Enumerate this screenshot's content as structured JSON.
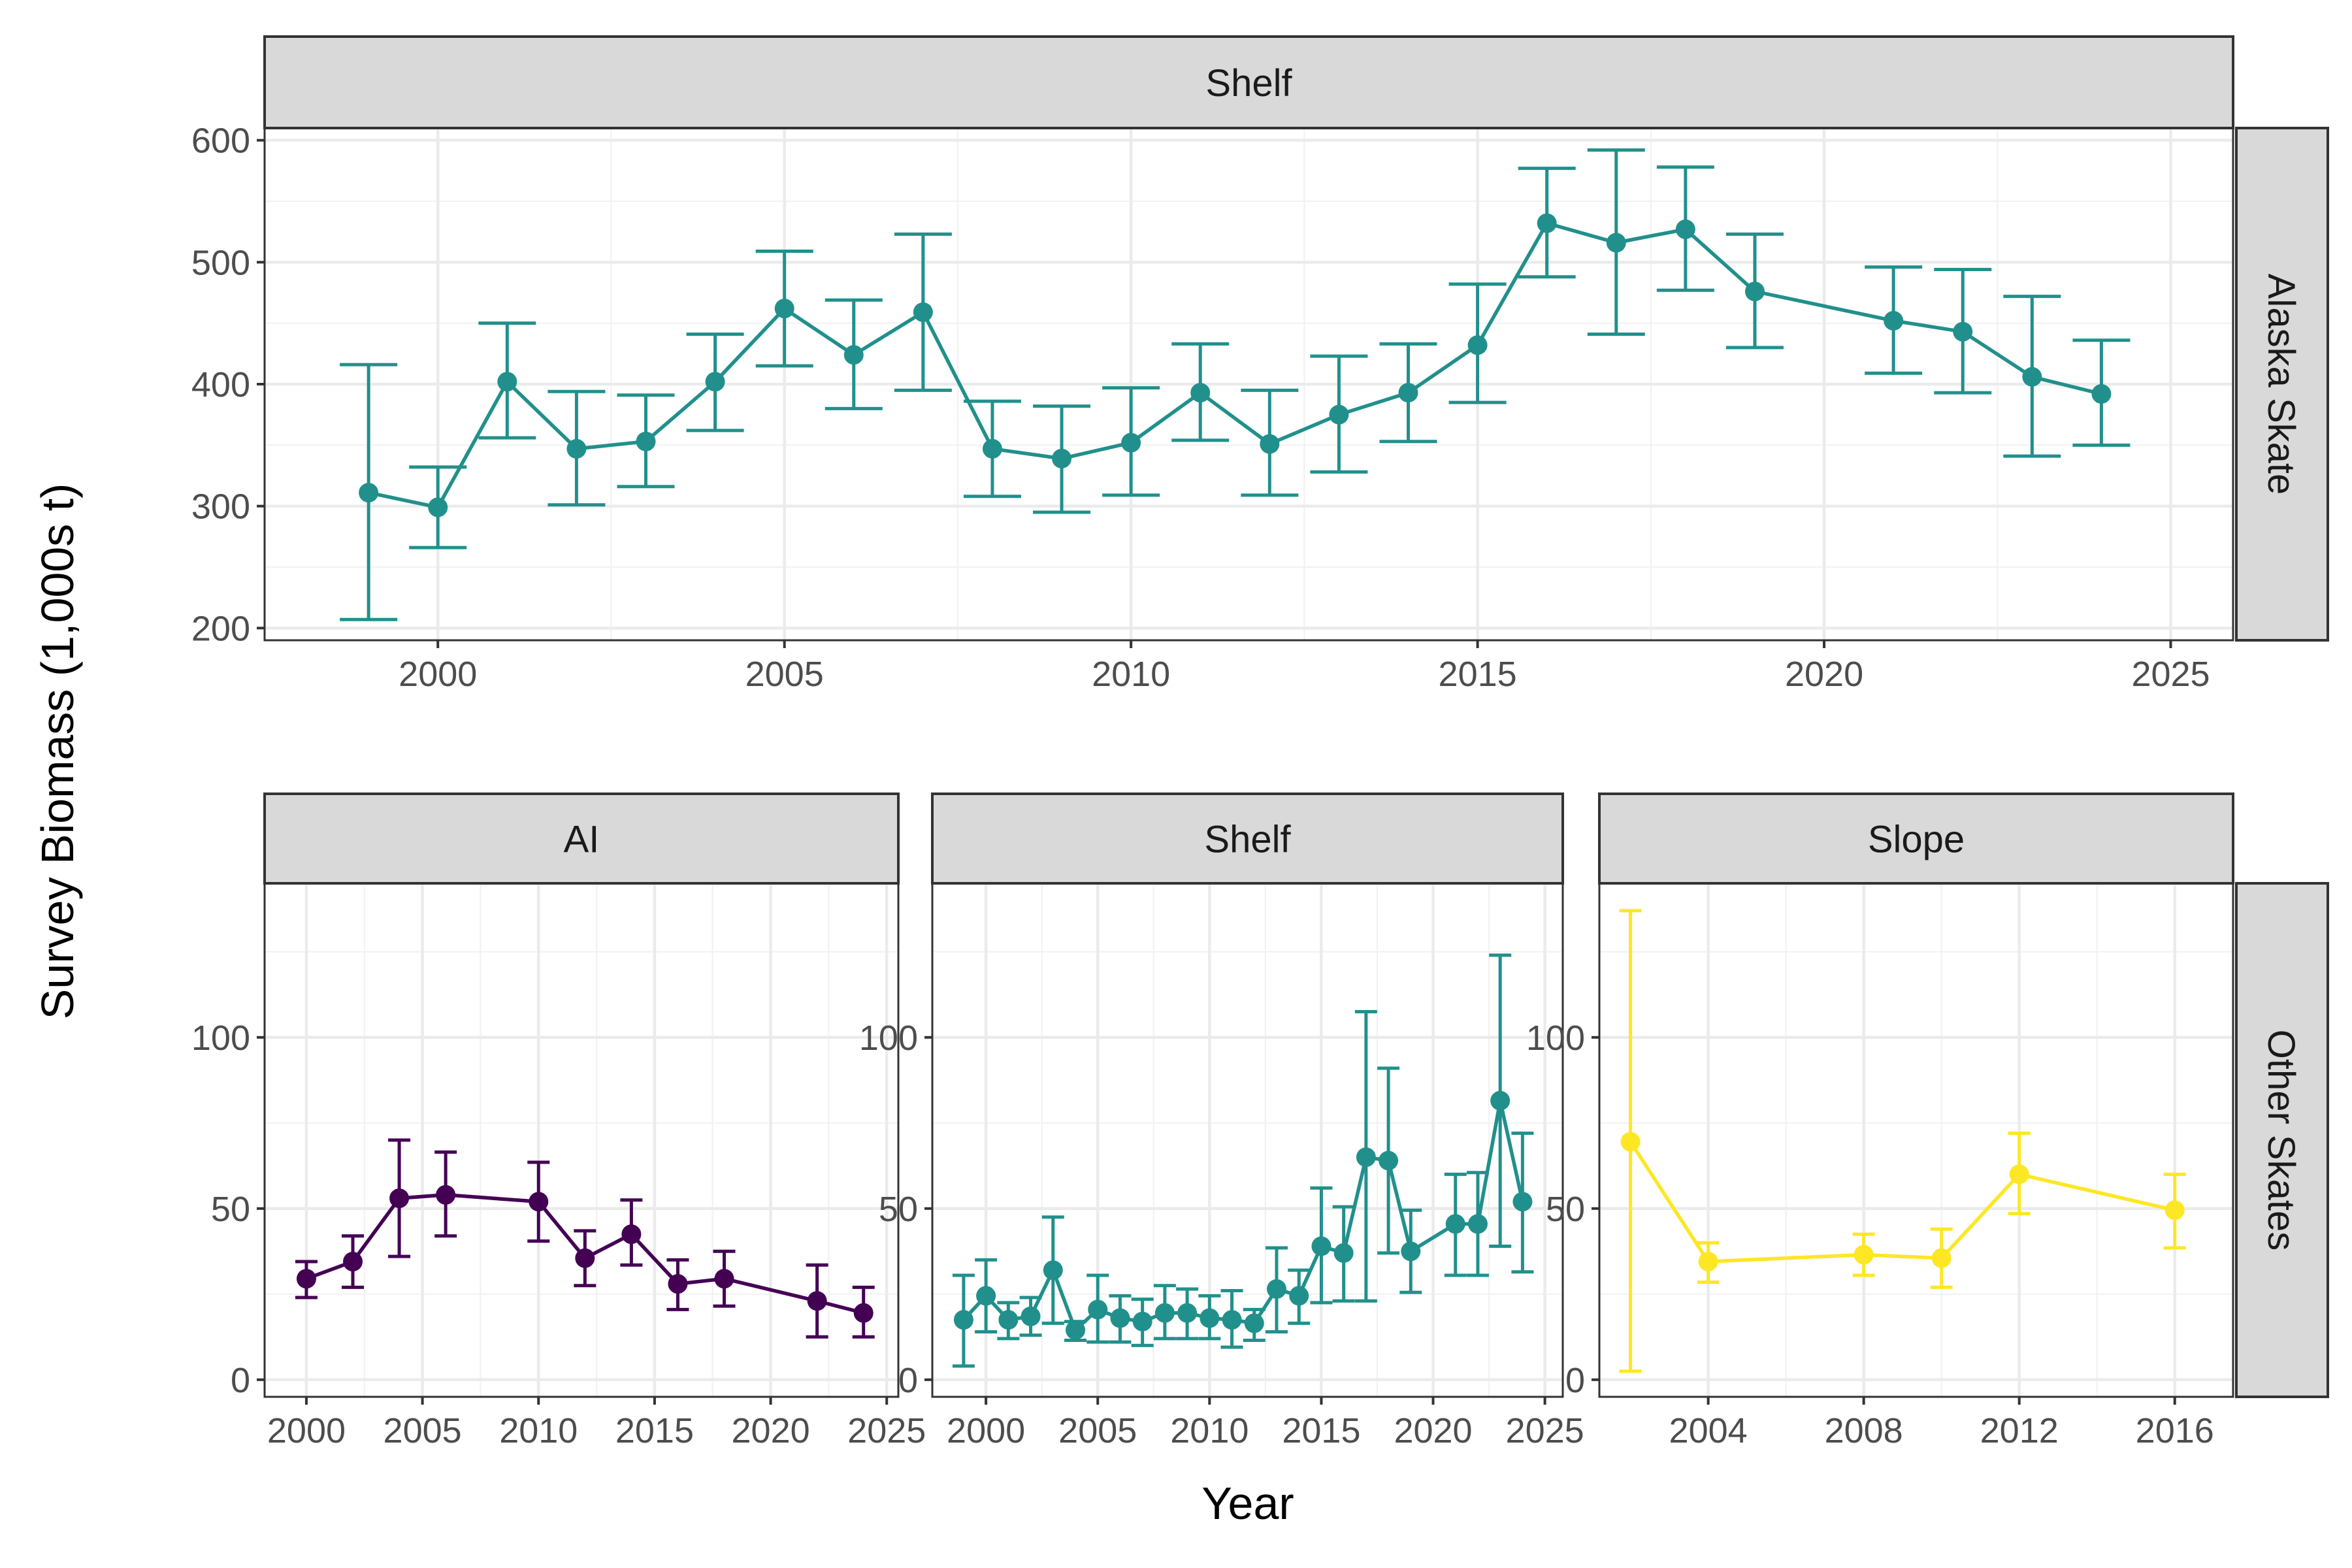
{
  "axis_titles": {
    "x": "Year",
    "y": "Survey Biomass (1,000s t)"
  },
  "chart_data": [
    {
      "type": "line",
      "facet_col": "Shelf",
      "facet_row": "Alaska Skate",
      "color": "#21908c",
      "xlim": [
        1997.5,
        2025.9
      ],
      "ylim": [
        190,
        610
      ],
      "x_ticks": [
        2000,
        2005,
        2010,
        2015,
        2020,
        2025
      ],
      "x_tick_labels": [
        "2000",
        "2005",
        "2010",
        "2015",
        "2020",
        "2025"
      ],
      "y_ticks": [
        200,
        300,
        400,
        500,
        600
      ],
      "y_tick_labels": [
        "200",
        "300",
        "400",
        "500",
        "600"
      ],
      "x": [
        1999,
        2000,
        2001,
        2002,
        2003,
        2004,
        2005,
        2006,
        2007,
        2008,
        2009,
        2010,
        2011,
        2012,
        2013,
        2014,
        2015,
        2016,
        2017,
        2018,
        2019,
        2021,
        2022,
        2023,
        2024
      ],
      "y": [
        311,
        299,
        402,
        347,
        353,
        402,
        462,
        424,
        459,
        347,
        339,
        352,
        393,
        351,
        375,
        393,
        432,
        532,
        516,
        527,
        476,
        452,
        443,
        406,
        392
      ],
      "y_low": [
        207,
        266,
        356,
        301,
        316,
        362,
        415,
        380,
        395,
        308,
        295,
        309,
        354,
        309,
        328,
        353,
        385,
        488,
        441,
        477,
        430,
        409,
        393,
        341,
        350
      ],
      "y_high": [
        416,
        332,
        450,
        394,
        391,
        441,
        509,
        469,
        523,
        386,
        382,
        397,
        433,
        395,
        423,
        433,
        482,
        577,
        592,
        578,
        523,
        496,
        494,
        472,
        436
      ]
    },
    {
      "type": "line",
      "facet_col": "AI",
      "facet_row": "Other Skates",
      "color": "#440154",
      "xlim": [
        1998.2,
        2025.5
      ],
      "ylim": [
        -5,
        145
      ],
      "x_ticks": [
        2000,
        2005,
        2010,
        2015,
        2020,
        2025
      ],
      "x_tick_labels": [
        "2000",
        "2005",
        "2010",
        "2015",
        "2020",
        "2025"
      ],
      "y_ticks": [
        0,
        50,
        100
      ],
      "y_tick_labels": [
        "0",
        "50",
        "100"
      ],
      "x": [
        2000,
        2002,
        2004,
        2006,
        2010,
        2012,
        2014,
        2016,
        2018,
        2022,
        2024
      ],
      "y": [
        29.5,
        34.5,
        53,
        54,
        52,
        35.5,
        42.5,
        28,
        29.5,
        23,
        19.5
      ],
      "y_low": [
        24,
        27,
        36,
        42,
        40.5,
        27.5,
        33.5,
        20.5,
        21.5,
        12.5,
        12.5
      ],
      "y_high": [
        34.5,
        42,
        70,
        66.5,
        63.5,
        43.5,
        52.5,
        35,
        37.5,
        33.5,
        27
      ]
    },
    {
      "type": "line",
      "facet_col": "Shelf",
      "facet_row": "Other Skates",
      "color": "#21908c",
      "xlim": [
        1997.6,
        2025.8
      ],
      "ylim": [
        -5,
        145
      ],
      "x_ticks": [
        2000,
        2005,
        2010,
        2015,
        2020,
        2025
      ],
      "x_tick_labels": [
        "2000",
        "2005",
        "2010",
        "2015",
        "2020",
        "2025"
      ],
      "y_ticks": [
        0,
        50,
        100
      ],
      "y_tick_labels": [
        "0",
        "50",
        "100"
      ],
      "x": [
        1999,
        2000,
        2001,
        2002,
        2003,
        2004,
        2005,
        2006,
        2007,
        2008,
        2009,
        2010,
        2011,
        2012,
        2013,
        2014,
        2015,
        2016,
        2017,
        2018,
        2019,
        2021,
        2022,
        2023,
        2024
      ],
      "y": [
        17.5,
        24.5,
        17.5,
        18.5,
        32,
        14.5,
        20.5,
        18,
        17,
        19.5,
        19.5,
        18,
        17.5,
        16.5,
        26.5,
        24.5,
        39,
        37,
        65,
        64,
        37.5,
        45.5,
        45.5,
        81.5,
        52
      ],
      "y_low": [
        4,
        14,
        12,
        13,
        16.5,
        11.5,
        11,
        11,
        10,
        12,
        12,
        12,
        9.5,
        11.5,
        14,
        16.5,
        22.5,
        23,
        23,
        37,
        25.5,
        30.5,
        30.5,
        39,
        31.5
      ],
      "y_high": [
        30.5,
        35,
        22.5,
        24,
        47.5,
        17,
        30.5,
        24.5,
        23.5,
        27.5,
        26.5,
        24.5,
        26,
        20.5,
        38.5,
        32,
        56,
        50.5,
        107.5,
        91,
        49.5,
        60,
        60.5,
        124,
        72
      ]
    },
    {
      "type": "line",
      "facet_col": "Slope",
      "facet_row": "Other Skates",
      "color": "#fde725",
      "xlim": [
        2001.2,
        2017.5
      ],
      "ylim": [
        -5,
        145
      ],
      "x_ticks": [
        2004,
        2008,
        2012,
        2016
      ],
      "x_tick_labels": [
        "2004",
        "2008",
        "2012",
        "2016"
      ],
      "y_ticks": [
        0,
        50,
        100
      ],
      "y_tick_labels": [
        "0",
        "50",
        "100"
      ],
      "x": [
        2002,
        2004,
        2008,
        2010,
        2012,
        2016
      ],
      "y": [
        69.5,
        34.5,
        36.5,
        35.5,
        60,
        49.5
      ],
      "y_low": [
        2.5,
        28.5,
        30.5,
        27,
        48.5,
        38.5
      ],
      "y_high": [
        137,
        40,
        42.5,
        44,
        72,
        60
      ]
    }
  ]
}
